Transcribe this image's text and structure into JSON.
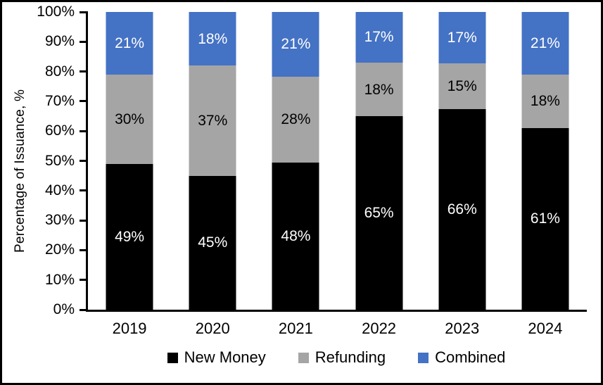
{
  "chart_data": {
    "type": "bar",
    "stacked": true,
    "title": "",
    "xlabel": "",
    "ylabel": "Percentage of Issuance, %",
    "ylim": [
      0,
      100
    ],
    "ytick_step": 10,
    "ytick_labels": [
      "0%",
      "10%",
      "20%",
      "30%",
      "40%",
      "50%",
      "60%",
      "70%",
      "80%",
      "90%",
      "100%"
    ],
    "value_suffix": "%",
    "grid": false,
    "legend_position": "bottom",
    "categories": [
      "2019",
      "2020",
      "2021",
      "2022",
      "2023",
      "2024"
    ],
    "series": [
      {
        "name": "New Money",
        "color": "#000000",
        "label_color": "#ffffff",
        "values": [
          49,
          45,
          48,
          65,
          66,
          61
        ]
      },
      {
        "name": "Refunding",
        "color": "#A5A5A5",
        "label_color": "#000000",
        "values": [
          30,
          37,
          28,
          18,
          15,
          18
        ]
      },
      {
        "name": "Combined",
        "color": "#4472C4",
        "label_color": "#ffffff",
        "values": [
          21,
          18,
          21,
          17,
          17,
          21
        ]
      }
    ]
  }
}
